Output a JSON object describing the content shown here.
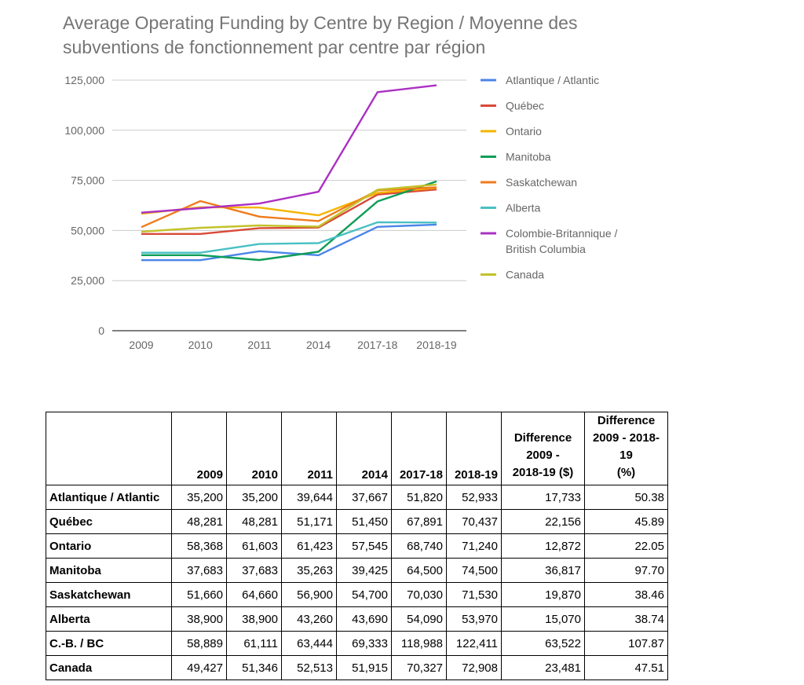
{
  "chart_data": {
    "type": "line",
    "title": "Average Operating Funding by Centre by Region / Moyenne des subventions de fonctionnement par centre par région",
    "categories": [
      "2009",
      "2010",
      "2011",
      "2014",
      "2017-18",
      "2018-19"
    ],
    "ylim": [
      0,
      125000
    ],
    "yticks": [
      "0",
      "25,000",
      "50,000",
      "75,000",
      "100,000",
      "125,000"
    ],
    "legend_position": "right",
    "series": [
      {
        "name": "Atlantique / Atlantic",
        "color": "#4a86e8",
        "values": [
          35200,
          35200,
          39644,
          37667,
          51820,
          52933
        ]
      },
      {
        "name": "Québec",
        "color": "#d84a38",
        "values": [
          48281,
          48281,
          51171,
          51450,
          67891,
          70437
        ]
      },
      {
        "name": "Ontario",
        "color": "#f5b400",
        "values": [
          58368,
          61603,
          61423,
          57545,
          68740,
          71240
        ]
      },
      {
        "name": "Manitoba",
        "color": "#0f9d58",
        "values": [
          37683,
          37683,
          35263,
          39425,
          64500,
          74500
        ]
      },
      {
        "name": "Saskatchewan",
        "color": "#f07b1c",
        "values": [
          51660,
          64660,
          56900,
          54700,
          70030,
          71530
        ]
      },
      {
        "name": "Alberta",
        "color": "#4ac0c4",
        "values": [
          38900,
          38900,
          43260,
          43690,
          54090,
          53970
        ]
      },
      {
        "name": "Colombie-Britannique / British Columbia",
        "legend_lines": [
          "Colombie-Britannique /",
          "British Columbia"
        ],
        "color": "#ab30c4",
        "values": [
          58889,
          61111,
          63444,
          69333,
          118988,
          122411
        ]
      },
      {
        "name": "Canada",
        "color": "#c2c22a",
        "values": [
          49427,
          51346,
          52513,
          51915,
          70327,
          72908
        ]
      }
    ]
  },
  "table": {
    "headers": [
      "",
      "2009",
      "2010",
      "2011",
      "2014",
      "2017-18",
      "2018-19"
    ],
    "diff_headers": [
      [
        "Difference",
        "2009 -",
        "2018-19 ($)"
      ],
      [
        "Difference",
        "2009 - 2018-19",
        "(%)"
      ]
    ],
    "rows": [
      [
        "Atlantique / Atlantic",
        "35,200",
        "35,200",
        "39,644",
        "37,667",
        "51,820",
        "52,933",
        "17,733",
        "50.38"
      ],
      [
        "Québec",
        "48,281",
        "48,281",
        "51,171",
        "51,450",
        "67,891",
        "70,437",
        "22,156",
        "45.89"
      ],
      [
        "Ontario",
        "58,368",
        "61,603",
        "61,423",
        "57,545",
        "68,740",
        "71,240",
        "12,872",
        "22.05"
      ],
      [
        "Manitoba",
        "37,683",
        "37,683",
        "35,263",
        "39,425",
        "64,500",
        "74,500",
        "36,817",
        "97.70"
      ],
      [
        "Saskatchewan",
        "51,660",
        "64,660",
        "56,900",
        "54,700",
        "70,030",
        "71,530",
        "19,870",
        "38.46"
      ],
      [
        "Alberta",
        "38,900",
        "38,900",
        "43,260",
        "43,690",
        "54,090",
        "53,970",
        "15,070",
        "38.74"
      ],
      [
        "C.-B. / BC",
        "58,889",
        "61,111",
        "63,444",
        "69,333",
        "118,988",
        "122,411",
        "63,522",
        "107.87"
      ],
      [
        "Canada",
        "49,427",
        "51,346",
        "52,513",
        "51,915",
        "70,327",
        "72,908",
        "23,481",
        "47.51"
      ]
    ]
  }
}
